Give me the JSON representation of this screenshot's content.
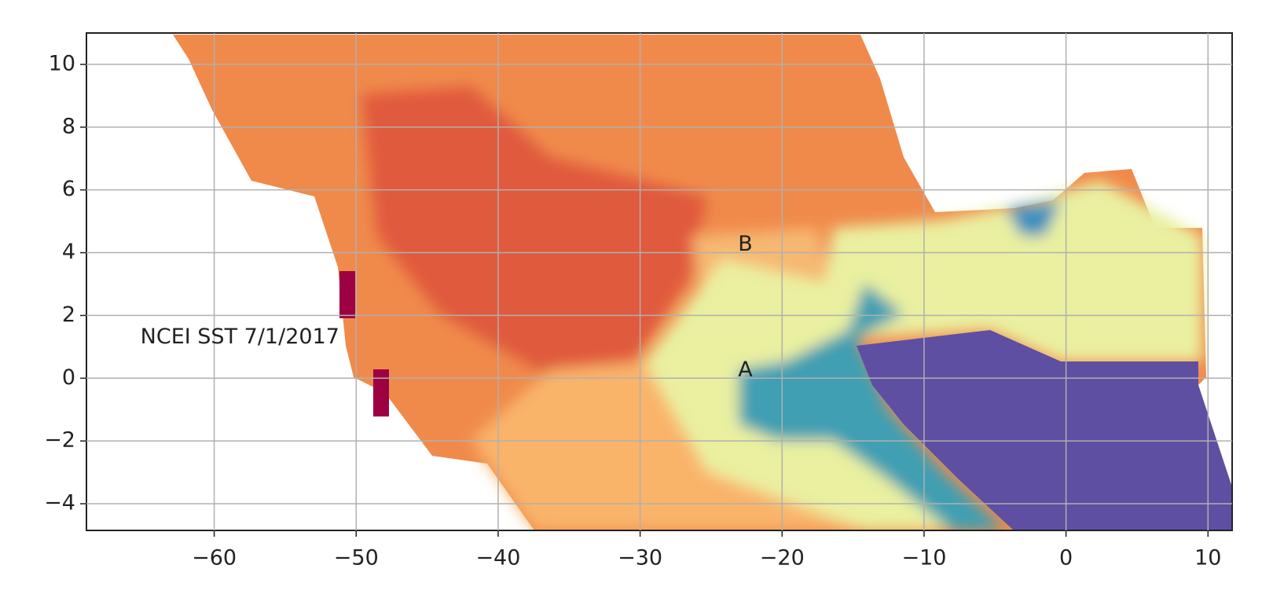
{
  "chart_data": {
    "type": "map",
    "xlim": [
      -69,
      11.7
    ],
    "ylim": [
      -4.85,
      11
    ],
    "xticks": [
      {
        "value": -60,
        "label": "−60"
      },
      {
        "value": -50,
        "label": "−50"
      },
      {
        "value": -40,
        "label": "−40"
      },
      {
        "value": -30,
        "label": "−30"
      },
      {
        "value": -20,
        "label": "−20"
      },
      {
        "value": -10,
        "label": "−10"
      },
      0,
      10
    ],
    "yticks": [
      {
        "value": -4,
        "label": "−4"
      },
      {
        "value": -2,
        "label": "−2"
      },
      0,
      2,
      4,
      6,
      8,
      10
    ],
    "grid": true,
    "annotations": [
      {
        "text": "NCEI SST 7/1/2017",
        "x": -65.2,
        "y": 1.3
      },
      {
        "text": "B",
        "x": -23.1,
        "y": 4.25
      },
      {
        "text": "A",
        "x": -23.1,
        "y": 0.25
      }
    ]
  }
}
